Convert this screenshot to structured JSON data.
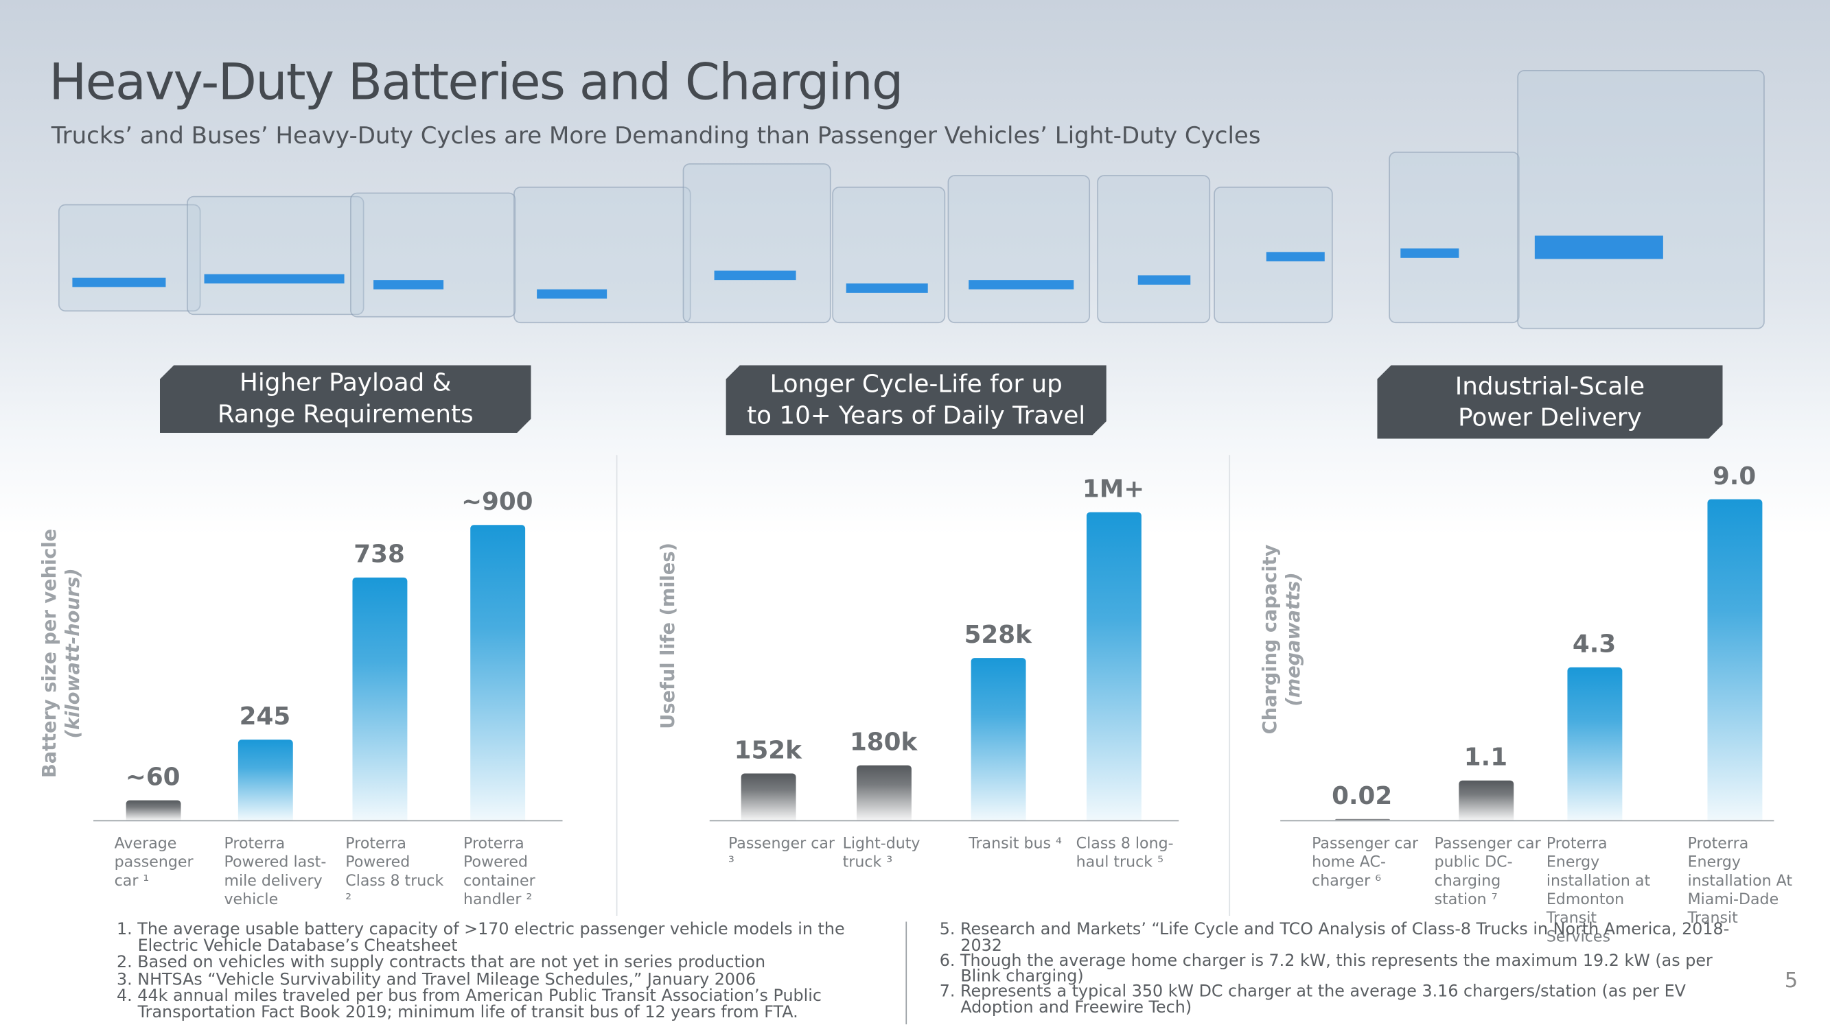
{
  "title": "Heavy-Duty Batteries and Charging",
  "subtitle": "Trucks’ and Buses’ Heavy-Duty Cycles are More Demanding than Passenger Vehicles’ Light-Duty Cycles",
  "page_number": "5",
  "footnotes_left": [
    "1. The average usable battery capacity of >170 electric passenger vehicle models in the Electric Vehicle Database’s Cheatsheet",
    "2. Based on vehicles with supply contracts that are not yet in series production",
    "3. NHTSAs “Vehicle Survivability and Travel Mileage Schedules,” January 2006",
    "4. 44k annual miles traveled per bus from American Public Transit Association’s Public Transportation Fact Book 2019; minimum life of transit bus of 12 years from FTA."
  ],
  "footnotes_right": [
    "5. Research and Markets’ “Life Cycle and TCO Analysis of Class-8 Trucks in North America, 2018-2032",
    "6. Though the average home charger is 7.2 kW, this represents the maximum 19.2 kW (as per Blink charging)",
    "7. Represents a typical 350 kW DC charger at the average 3.16 chargers/station (as per EV Adoption and Freewire Tech)"
  ],
  "chart_data": [
    {
      "type": "bar",
      "banner": [
        "Higher Payload &",
        "Range Requirements"
      ],
      "y_label": "Battery size per vehicle",
      "y_label_sub": "(kilowatt-hours)",
      "categories": [
        "Average passenger car ¹",
        "Proterra Powered last-mile delivery vehicle",
        "Proterra Powered Class 8 truck ²",
        "Proterra Powered container handler ²"
      ],
      "values": [
        60,
        245,
        738,
        900
      ],
      "value_labels": [
        "~60",
        "245",
        "738",
        "~900"
      ],
      "colors": [
        "#55595d",
        "#1a98d8",
        "#1a98d8",
        "#1a98d8"
      ],
      "ylim": [
        0,
        1030
      ]
    },
    {
      "type": "bar",
      "banner": [
        "Longer Cycle-Life for up",
        "to 10+ Years of Daily Travel"
      ],
      "y_label": "Useful life (miles)",
      "categories": [
        "Passenger car ³",
        "Light-duty truck ³",
        "Transit bus ⁴",
        "Class 8 long-haul truck ⁵"
      ],
      "values": [
        152000,
        180000,
        528000,
        1000000
      ],
      "value_labels": [
        "152k",
        "180k",
        "528k",
        "1M+"
      ],
      "colors": [
        "#55595d",
        "#55595d",
        "#1a98d8",
        "#1a98d8"
      ],
      "ylim": [
        0,
        1100000
      ]
    },
    {
      "type": "bar",
      "banner": [
        "Industrial-Scale",
        "Power Delivery"
      ],
      "y_label": "Charging capacity",
      "y_label_sub": "(megawatts)",
      "categories": [
        "Passenger car home AC-charger ⁶",
        "Passenger car public DC-charging station ⁷",
        "Proterra Energy installation at Edmonton Transit Services",
        "Proterra Energy installation At Miami-Dade Transit"
      ],
      "values": [
        0.02,
        1.1,
        4.3,
        9.0
      ],
      "value_labels": [
        "0.02",
        "1.1",
        "4.3",
        "9.0"
      ],
      "colors": [
        "#55595d",
        "#55595d",
        "#1a98d8",
        "#1a98d8"
      ],
      "ylim": [
        0,
        9.5
      ]
    }
  ]
}
